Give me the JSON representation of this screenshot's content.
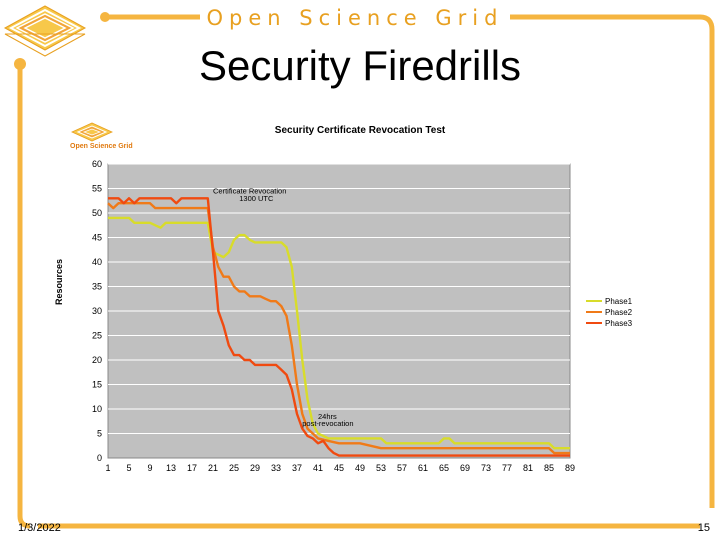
{
  "header": {
    "org": "Open Science Grid",
    "title": "Security Firedrills"
  },
  "footer": {
    "date": "1/3/2022",
    "page": "15"
  },
  "logo_text": "Open Science Grid",
  "colors": {
    "accent": "#f2a53a",
    "frame": "#f5b540",
    "plot_bg": "#c0c0c0"
  },
  "chart_data": {
    "type": "line",
    "title": "Security Certificate Revocation Test",
    "ylabel": "Resources",
    "xlabel": "",
    "xlim": [
      1,
      89
    ],
    "ylim": [
      0,
      60
    ],
    "x_ticks": [
      1,
      5,
      9,
      13,
      17,
      21,
      25,
      29,
      33,
      37,
      41,
      45,
      49,
      53,
      57,
      61,
      65,
      69,
      73,
      77,
      81,
      85,
      89
    ],
    "y_ticks": [
      0,
      5,
      10,
      15,
      20,
      25,
      30,
      35,
      40,
      45,
      50,
      55,
      60
    ],
    "grid": true,
    "legend_position": "right",
    "annotations": [
      {
        "text": "Certificate Revocation",
        "x": 21,
        "y": 54
      },
      {
        "text": "1300 UTC",
        "x": 26,
        "y": 52.5
      },
      {
        "text": "24hrs",
        "x": 41,
        "y": 8
      },
      {
        "text": "post-revocation",
        "x": 38,
        "y": 6.5
      }
    ],
    "series": [
      {
        "name": "Phase1",
        "color": "#d8dc2a",
        "x": [
          1,
          5,
          6,
          9,
          10,
          11,
          12,
          13,
          14,
          17,
          20,
          21,
          22,
          23,
          24,
          25,
          26,
          27,
          28,
          29,
          30,
          33,
          34,
          35,
          36,
          37,
          38,
          39,
          40,
          41,
          43,
          45,
          49,
          53,
          54,
          57,
          61,
          64,
          65,
          66,
          67,
          69,
          73,
          77,
          81,
          85,
          86,
          87,
          89
        ],
        "y": [
          49,
          49,
          48,
          48,
          47.5,
          47,
          48,
          48,
          48,
          48,
          48,
          42,
          41.5,
          41,
          42,
          44.5,
          45.5,
          45.5,
          44.5,
          44,
          44,
          44,
          44,
          43,
          39,
          30,
          20,
          12,
          7,
          5,
          4,
          4,
          4,
          4,
          3,
          3,
          3,
          3,
          4,
          4,
          3,
          3,
          3,
          3,
          3,
          3,
          2,
          2,
          2
        ]
      },
      {
        "name": "Phase2",
        "color": "#f07a18",
        "x": [
          1,
          2,
          3,
          5,
          9,
          10,
          13,
          17,
          20,
          21,
          22,
          23,
          24,
          25,
          26,
          27,
          28,
          29,
          30,
          31,
          32,
          33,
          34,
          35,
          36,
          37,
          38,
          39,
          40,
          41,
          43,
          45,
          49,
          53,
          57,
          61,
          65,
          69,
          73,
          77,
          81,
          85,
          86,
          87,
          89
        ],
        "y": [
          52,
          51,
          52,
          52,
          52,
          51,
          51,
          51,
          51,
          43,
          39,
          37,
          37,
          35,
          34,
          34,
          33,
          33,
          33,
          32.5,
          32,
          32,
          31,
          29,
          23,
          15,
          9,
          6,
          5,
          4,
          3.5,
          3,
          3,
          2,
          2,
          2,
          2,
          2,
          2,
          2,
          2,
          2,
          1,
          1,
          1
        ]
      },
      {
        "name": "Phase3",
        "color": "#f04a10",
        "x": [
          1,
          2,
          3,
          4,
          5,
          6,
          7,
          9,
          13,
          14,
          15,
          17,
          20,
          21,
          22,
          23,
          24,
          25,
          26,
          27,
          28,
          29,
          30,
          33,
          34,
          35,
          36,
          37,
          38,
          39,
          40,
          41,
          42,
          43,
          44,
          45,
          49,
          53,
          57,
          61,
          65,
          69,
          73,
          77,
          81,
          85,
          89
        ],
        "y": [
          53,
          53,
          53,
          52,
          53,
          52,
          53,
          53,
          53,
          52,
          53,
          53,
          53,
          42,
          30,
          27,
          23,
          21,
          21,
          20,
          20,
          19,
          19,
          19,
          18,
          17,
          14,
          9,
          6,
          4.5,
          4,
          3,
          3.5,
          2,
          1,
          0.5,
          0.5,
          0.5,
          0.5,
          0.5,
          0.5,
          0.5,
          0.5,
          0.5,
          0.5,
          0.5,
          0.5
        ]
      }
    ]
  }
}
